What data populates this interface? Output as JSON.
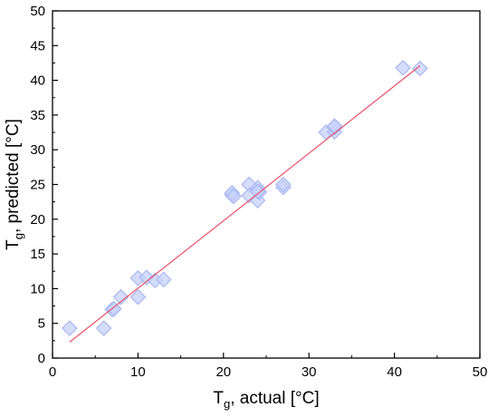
{
  "chart_data": {
    "type": "scatter",
    "xlabel": {
      "main": "T",
      "sub": "g",
      "rest": ", actual [°C]"
    },
    "ylabel": {
      "main": "T",
      "sub": "g",
      "rest": ", predicted [°C]"
    },
    "xlim": [
      0,
      50
    ],
    "ylim": [
      0,
      50
    ],
    "xticks": [
      0,
      10,
      20,
      30,
      40,
      50
    ],
    "yticks": [
      0,
      5,
      10,
      15,
      20,
      25,
      30,
      35,
      40,
      45,
      50
    ],
    "grid": false,
    "legend": "none",
    "series": [
      {
        "kind": "points",
        "marker": "diamond",
        "color": "#c7d2fa",
        "stroke": "#a9b8f2",
        "points": [
          [
            2,
            4.3
          ],
          [
            6,
            4.3
          ],
          [
            7,
            7.0
          ],
          [
            7.2,
            7.1
          ],
          [
            8,
            8.8
          ],
          [
            10,
            11.5
          ],
          [
            10,
            8.8
          ],
          [
            11,
            11.6
          ],
          [
            12,
            11.2
          ],
          [
            13,
            11.3
          ],
          [
            21,
            23.5
          ],
          [
            21,
            23.8
          ],
          [
            21.2,
            23.3
          ],
          [
            23,
            25.0
          ],
          [
            23,
            23.4
          ],
          [
            24,
            24.5
          ],
          [
            24,
            22.7
          ],
          [
            24.2,
            23.9
          ],
          [
            24,
            24.0
          ],
          [
            27,
            24.6
          ],
          [
            27,
            25.0
          ],
          [
            32,
            32.5
          ],
          [
            33,
            32.6
          ],
          [
            33,
            33.2
          ],
          [
            33,
            33.4
          ],
          [
            41,
            41.8
          ],
          [
            43,
            41.7
          ]
        ]
      },
      {
        "kind": "fit-line",
        "color": "#e8506a",
        "points": [
          [
            2,
            2.3
          ],
          [
            43,
            42.1
          ]
        ]
      }
    ]
  }
}
